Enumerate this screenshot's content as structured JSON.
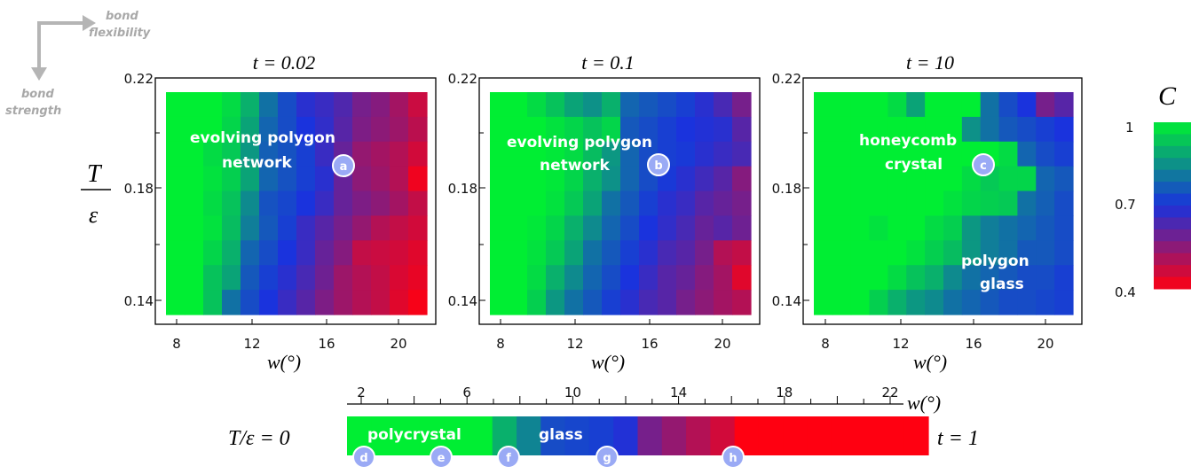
{
  "guide": {
    "right_label_1": "bond",
    "right_label_2": "flexibility",
    "down_label_1": "bond",
    "down_label_2": "strength"
  },
  "ylabel": {
    "num": "T",
    "den": "ε"
  },
  "overlays": {
    "p1_line1": "evolving polygon",
    "p1_line2": "network",
    "p2_line1": "evolving polygon",
    "p2_line2": "network",
    "p3_line1": "honeycomb",
    "p3_line2": "crystal",
    "p3_line3": "polygon",
    "p3_line4": "glass"
  },
  "badges": {
    "a": "a",
    "b": "b",
    "c": "c",
    "d": "d",
    "e": "e",
    "f": "f",
    "g": "g",
    "h": "h"
  },
  "colorbar": {
    "title": "C",
    "labels": [
      "1",
      "0.7",
      "0.4"
    ]
  },
  "strip": {
    "left_label": "T/ε = 0",
    "right_label": "t = 1",
    "axis_label": "w(°)",
    "polycrystal_label": "polycrystal",
    "glass_label": "glass"
  },
  "colors": {
    "high": "#00ee33",
    "mid": "#1a33dd",
    "low": "#ff0011"
  },
  "chart_data": [
    {
      "type": "heatmap",
      "title": "t = 0.02",
      "xlabel": "w(°)",
      "ylabel": "T/ε",
      "x": [
        7.6,
        8.6,
        9.6,
        10.6,
        11.6,
        12.6,
        13.6,
        14.6,
        15.6,
        16.6,
        17.6,
        18.6,
        19.6,
        20.6
      ],
      "y": [
        0.22,
        0.21,
        0.2,
        0.19,
        0.18,
        0.17,
        0.16,
        0.15,
        0.14
      ],
      "xticks": [
        "8",
        "12",
        "16",
        "20"
      ],
      "yticks": [
        "0.22",
        "0.18",
        "0.14"
      ],
      "ylim": [
        0.14,
        0.22
      ],
      "values": [
        [
          1.0,
          1.0,
          1.0,
          0.97,
          0.9,
          0.8,
          0.74,
          0.68,
          0.66,
          0.63,
          0.58,
          0.56,
          0.52,
          0.47
        ],
        [
          1.0,
          1.0,
          1.0,
          0.96,
          0.88,
          0.78,
          0.74,
          0.7,
          0.67,
          0.62,
          0.57,
          0.55,
          0.53,
          0.49
        ],
        [
          1.0,
          1.0,
          0.97,
          0.94,
          0.86,
          0.77,
          0.75,
          0.72,
          0.66,
          0.6,
          0.54,
          0.52,
          0.5,
          0.46
        ],
        [
          1.0,
          1.0,
          0.98,
          0.95,
          0.88,
          0.78,
          0.75,
          0.72,
          0.68,
          0.6,
          0.55,
          0.53,
          0.5,
          0.42
        ],
        [
          1.0,
          1.0,
          0.97,
          0.93,
          0.84,
          0.75,
          0.73,
          0.7,
          0.66,
          0.6,
          0.57,
          0.55,
          0.52,
          0.48
        ],
        [
          1.0,
          1.0,
          0.98,
          0.92,
          0.82,
          0.76,
          0.72,
          0.66,
          0.62,
          0.58,
          0.54,
          0.5,
          0.48,
          0.46
        ],
        [
          1.0,
          1.0,
          0.96,
          0.9,
          0.78,
          0.74,
          0.7,
          0.66,
          0.6,
          0.56,
          0.48,
          0.47,
          0.46,
          0.44
        ],
        [
          1.0,
          1.0,
          0.93,
          0.88,
          0.76,
          0.72,
          0.68,
          0.64,
          0.59,
          0.53,
          0.5,
          0.48,
          0.45,
          0.43
        ],
        [
          1.0,
          1.0,
          0.93,
          0.8,
          0.74,
          0.7,
          0.66,
          0.62,
          0.57,
          0.53,
          0.5,
          0.48,
          0.44,
          0.41
        ]
      ]
    },
    {
      "type": "heatmap",
      "title": "t = 0.1",
      "xlabel": "w(°)",
      "ylabel": "T/ε",
      "x": [
        7.6,
        8.6,
        9.6,
        10.6,
        11.6,
        12.6,
        13.6,
        14.6,
        15.6,
        16.6,
        17.6,
        18.6,
        19.6,
        20.6
      ],
      "y": [
        0.22,
        0.21,
        0.2,
        0.19,
        0.18,
        0.17,
        0.16,
        0.15,
        0.14
      ],
      "xticks": [
        "8",
        "12",
        "16",
        "20"
      ],
      "yticks": [
        "0.22",
        "0.18",
        "0.14"
      ],
      "ylim": [
        0.14,
        0.22
      ],
      "values": [
        [
          1.0,
          1.0,
          0.97,
          0.93,
          0.88,
          0.85,
          0.9,
          0.78,
          0.76,
          0.74,
          0.72,
          0.68,
          0.64,
          0.58
        ],
        [
          1.0,
          1.0,
          1.0,
          0.98,
          0.96,
          0.93,
          0.96,
          0.76,
          0.74,
          0.72,
          0.7,
          0.69,
          0.68,
          0.62
        ],
        [
          1.0,
          1.0,
          1.0,
          0.99,
          0.97,
          0.92,
          0.86,
          0.78,
          0.74,
          0.72,
          0.71,
          0.68,
          0.66,
          0.64
        ],
        [
          1.0,
          1.0,
          1.0,
          0.99,
          0.96,
          0.9,
          0.85,
          0.78,
          0.74,
          0.71,
          0.68,
          0.65,
          0.62,
          0.56
        ],
        [
          1.0,
          1.0,
          1.0,
          0.98,
          0.94,
          0.88,
          0.8,
          0.76,
          0.72,
          0.68,
          0.66,
          0.62,
          0.6,
          0.58
        ],
        [
          1.0,
          1.0,
          0.99,
          0.96,
          0.9,
          0.84,
          0.78,
          0.74,
          0.7,
          0.67,
          0.64,
          0.6,
          0.62,
          0.59
        ],
        [
          1.0,
          1.0,
          0.98,
          0.94,
          0.88,
          0.8,
          0.76,
          0.72,
          0.68,
          0.64,
          0.62,
          0.58,
          0.5,
          0.48
        ],
        [
          1.0,
          1.0,
          0.97,
          0.9,
          0.84,
          0.78,
          0.74,
          0.7,
          0.66,
          0.62,
          0.6,
          0.56,
          0.52,
          0.44
        ],
        [
          1.0,
          1.0,
          0.95,
          0.86,
          0.8,
          0.76,
          0.72,
          0.68,
          0.64,
          0.62,
          0.58,
          0.55,
          0.52,
          0.5
        ]
      ]
    },
    {
      "type": "heatmap",
      "title": "t = 10",
      "xlabel": "w(°)",
      "ylabel": "T/ε",
      "x": [
        7.6,
        8.6,
        9.6,
        10.6,
        11.6,
        12.6,
        13.6,
        14.6,
        15.6,
        16.6,
        17.6,
        18.6,
        19.6,
        20.6
      ],
      "y": [
        0.22,
        0.21,
        0.2,
        0.19,
        0.18,
        0.17,
        0.16,
        0.15,
        0.14
      ],
      "xticks": [
        "8",
        "12",
        "16",
        "20"
      ],
      "yticks": [
        "0.22",
        "0.18",
        "0.14"
      ],
      "ylim": [
        0.14,
        0.22
      ],
      "values": [
        [
          1.0,
          1.0,
          1.0,
          1.0,
          0.97,
          0.88,
          1.0,
          1.0,
          1.0,
          0.8,
          0.74,
          0.7,
          0.58,
          0.62
        ],
        [
          1.0,
          1.0,
          1.0,
          1.0,
          1.0,
          1.0,
          1.0,
          1.0,
          0.85,
          0.8,
          0.76,
          0.74,
          0.72,
          0.7
        ],
        [
          1.0,
          1.0,
          1.0,
          1.0,
          1.0,
          1.0,
          1.0,
          1.0,
          1.0,
          1.0,
          0.97,
          0.78,
          0.74,
          0.72
        ],
        [
          1.0,
          1.0,
          1.0,
          1.0,
          1.0,
          1.0,
          1.0,
          1.0,
          0.97,
          0.94,
          0.96,
          0.96,
          0.78,
          0.76
        ],
        [
          1.0,
          1.0,
          1.0,
          1.0,
          1.0,
          1.0,
          1.0,
          0.98,
          0.96,
          0.95,
          0.94,
          0.8,
          0.77,
          0.74
        ],
        [
          1.0,
          1.0,
          1.0,
          0.98,
          1.0,
          1.0,
          0.97,
          0.95,
          0.86,
          0.82,
          0.8,
          0.78,
          0.76,
          0.74
        ],
        [
          1.0,
          1.0,
          1.0,
          1.0,
          1.0,
          0.98,
          0.95,
          0.92,
          0.86,
          0.82,
          0.8,
          0.76,
          0.76,
          0.74
        ],
        [
          1.0,
          1.0,
          1.0,
          1.0,
          0.97,
          0.93,
          0.9,
          0.84,
          0.8,
          0.78,
          0.76,
          0.74,
          0.74,
          0.72
        ],
        [
          1.0,
          1.0,
          1.0,
          0.95,
          0.9,
          0.86,
          0.84,
          0.8,
          0.78,
          0.76,
          0.74,
          0.74,
          0.73,
          0.72
        ]
      ]
    },
    {
      "type": "heatmap",
      "title": "",
      "xlabel": "w(°)",
      "ylabel": "",
      "x": [
        1,
        2,
        3,
        4,
        5,
        6,
        7,
        8,
        9,
        10,
        11,
        12,
        13,
        14,
        15,
        16,
        17,
        18,
        19,
        20,
        21,
        22,
        23,
        24
      ],
      "xticks": [
        "2",
        "6",
        "10",
        "14",
        "18",
        "22"
      ],
      "values": [
        [
          1.0,
          1.0,
          1.0,
          1.0,
          1.0,
          1.0,
          0.9,
          0.83,
          0.74,
          0.73,
          0.72,
          0.69,
          0.58,
          0.54,
          0.5,
          0.46,
          0.4,
          0.4,
          0.4,
          0.4,
          0.4,
          0.4,
          0.4,
          0.4
        ]
      ]
    }
  ]
}
